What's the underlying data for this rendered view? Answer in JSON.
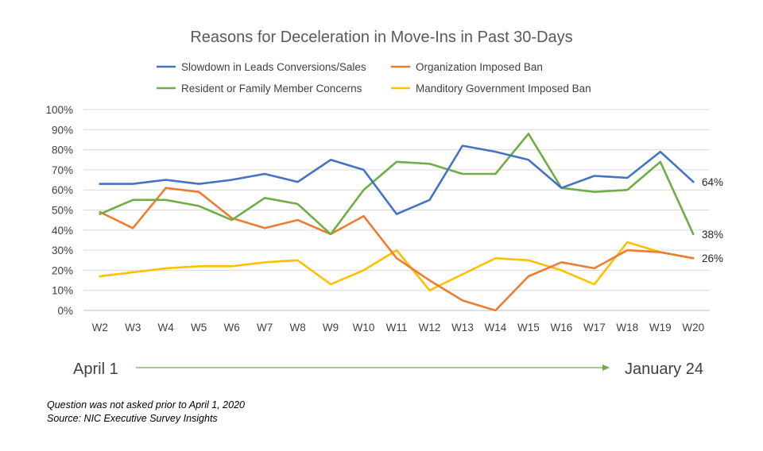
{
  "chart_data": {
    "type": "line",
    "title": "Reasons for Deceleration in Move-Ins in Past 30-Days",
    "categories": [
      "W2",
      "W3",
      "W4",
      "W5",
      "W6",
      "W7",
      "W8",
      "W9",
      "W10",
      "W11",
      "W12",
      "W13",
      "W14",
      "W15",
      "W16",
      "W17",
      "W18",
      "W19",
      "W20"
    ],
    "y_ticks": [
      "0%",
      "10%",
      "20%",
      "30%",
      "40%",
      "50%",
      "60%",
      "70%",
      "80%",
      "90%",
      "100%"
    ],
    "ylim": [
      0,
      100
    ],
    "grid": true,
    "legend_position": "top",
    "series": [
      {
        "name": "Slowdown in Leads Conversions/Sales",
        "color": "#4472C4",
        "values": [
          63,
          63,
          65,
          63,
          65,
          68,
          64,
          75,
          70,
          48,
          55,
          82,
          79,
          75,
          61,
          67,
          66,
          79,
          64
        ],
        "end_label": "64%"
      },
      {
        "name": "Organization Imposed Ban",
        "color": "#ED7D31",
        "values": [
          49,
          41,
          61,
          59,
          46,
          41,
          45,
          38,
          47,
          26,
          15,
          5,
          0,
          17,
          24,
          21,
          30,
          29,
          26
        ],
        "end_label": ""
      },
      {
        "name": "Resident or Family Member Concerns",
        "color": "#70AD47",
        "values": [
          48,
          55,
          55,
          52,
          45,
          56,
          53,
          38,
          60,
          74,
          73,
          68,
          68,
          88,
          61,
          59,
          60,
          74,
          38
        ],
        "end_label": "38%"
      },
      {
        "name": "Manditory Government Imposed Ban",
        "color": "#FFC000",
        "values": [
          17,
          19,
          21,
          22,
          22,
          24,
          25,
          13,
          20,
          30,
          10,
          18,
          26,
          25,
          20,
          13,
          34,
          29,
          26
        ],
        "end_label": "26%"
      }
    ],
    "range": {
      "start": "April 1",
      "end": "January 24",
      "arrow_color": "#70AD47"
    }
  },
  "notes": {
    "line1": "Question was not asked prior to April 1, 2020",
    "line2": "Source: NIC Executive Survey Insights"
  }
}
